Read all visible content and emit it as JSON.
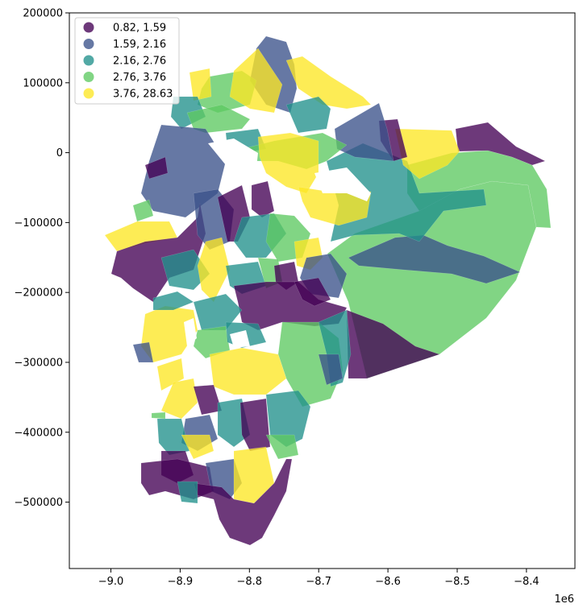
{
  "chart_data": {
    "type": "choropleth",
    "xlim": [
      -9060000,
      -8330000
    ],
    "ylim": [
      -595000,
      200000
    ],
    "x_ticks": [
      {
        "value": -9000000,
        "label": "−9.0"
      },
      {
        "value": -8900000,
        "label": "−8.9"
      },
      {
        "value": -8800000,
        "label": "−8.8"
      },
      {
        "value": -8700000,
        "label": "−8.7"
      },
      {
        "value": -8600000,
        "label": "−8.6"
      },
      {
        "value": -8500000,
        "label": "−8.5"
      },
      {
        "value": -8400000,
        "label": "−8.4"
      }
    ],
    "x_offset_label": "1e6",
    "y_ticks": [
      {
        "value": 200000,
        "label": "200000"
      },
      {
        "value": 100000,
        "label": "100000"
      },
      {
        "value": 0,
        "label": "0"
      },
      {
        "value": -100000,
        "label": "−100000"
      },
      {
        "value": -200000,
        "label": "−200000"
      },
      {
        "value": -300000,
        "label": "−300000"
      },
      {
        "value": -400000,
        "label": "−400000"
      },
      {
        "value": -500000,
        "label": "−500000"
      }
    ],
    "legend": {
      "placement": "upper-left",
      "entries": [
        {
          "label": "0.82,  1.59",
          "color": "#440154"
        },
        {
          "label": "1.59,  2.16",
          "color": "#3b528b"
        },
        {
          "label": "2.16,  2.76",
          "color": "#21918c"
        },
        {
          "label": "2.76,  3.76",
          "color": "#5ec962"
        },
        {
          "label": "3.76, 28.63",
          "color": "#fde725"
        }
      ]
    },
    "fill_alpha": 0.78,
    "grid": false
  }
}
